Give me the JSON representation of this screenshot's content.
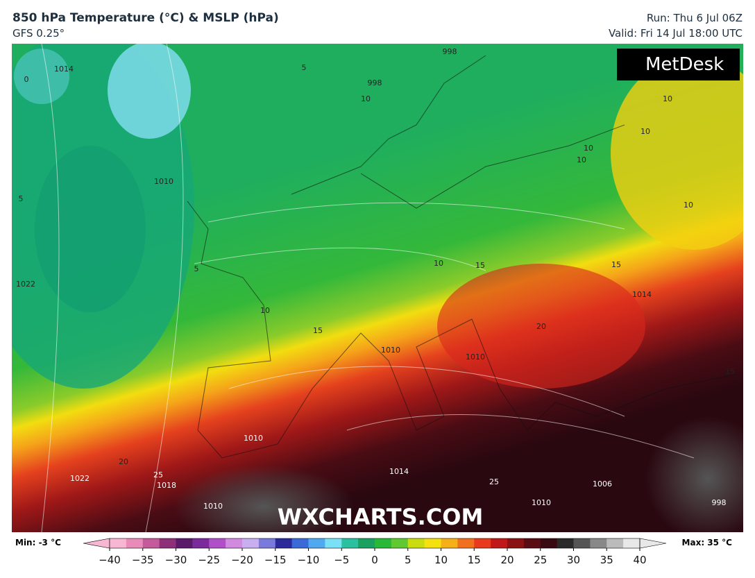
{
  "header": {
    "title": "850 hPa Temperature (°C) & MSLP (hPa)",
    "model": "GFS 0.25°",
    "run": "Run: Thu 6 Jul 06Z",
    "valid": "Valid: Fri 14 Jul 18:00 UTC"
  },
  "logo": "MetDesk",
  "watermark": "WXCHARTS.COM",
  "map_labels": [
    "1014",
    "0",
    "5",
    "998",
    "998",
    "10",
    "10",
    "10",
    "10",
    "10",
    "10",
    "1010",
    "5",
    "1022",
    "5",
    "10",
    "15",
    "1010",
    "1010",
    "15",
    "15",
    "10",
    "20",
    "1014",
    "15",
    "1010",
    "20",
    "25",
    "1022",
    "1018",
    "1010",
    "1014",
    "25",
    "1006",
    "1010",
    "998"
  ],
  "colorbar": {
    "min": "Min: -3 °C",
    "max": "Max: 35 °C",
    "ticks": [
      "−40",
      "−35",
      "−30",
      "−25",
      "−20",
      "−15",
      "−10",
      "−5",
      "0",
      "5",
      "10",
      "15",
      "20",
      "25",
      "30",
      "35",
      "40"
    ]
  }
}
